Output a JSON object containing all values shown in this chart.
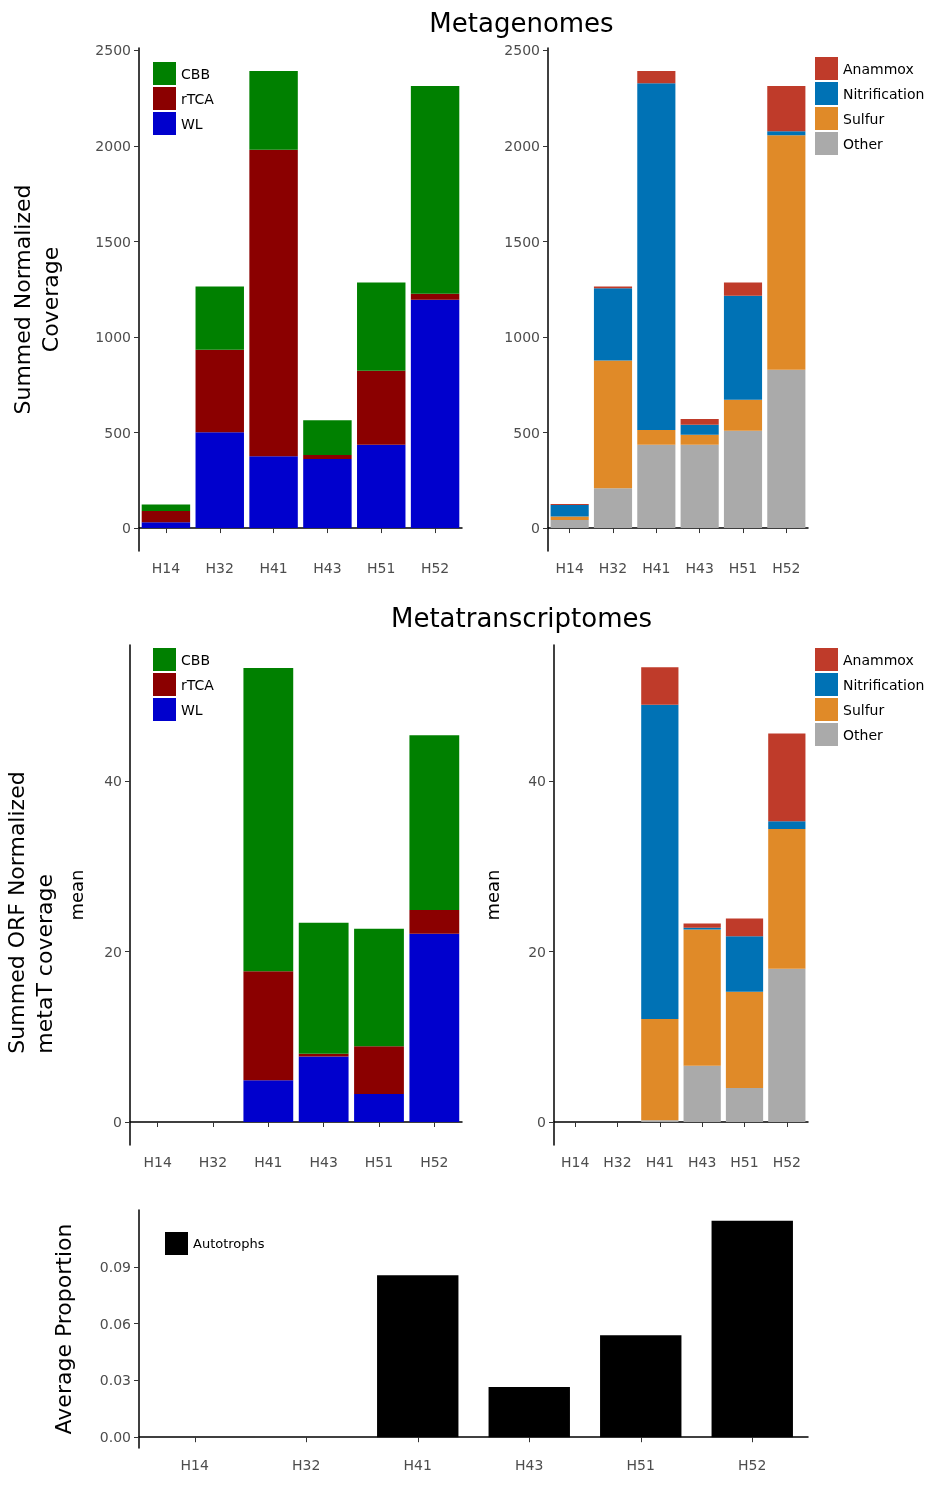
{
  "chart_data": [
    {
      "type": "bar",
      "title": "Metagenomes",
      "ylabel": "Summed Normalized\nCoverage",
      "categories": [
        "H14",
        "H32",
        "H41",
        "H43",
        "H51",
        "H52"
      ],
      "stacked": true,
      "legend": "top left",
      "ylim": [
        -120,
        2513
      ],
      "yticks": [
        0,
        500,
        1000,
        1500,
        2000,
        2500
      ],
      "series": [
        {
          "name": "WL",
          "color": "#0000cd",
          "values": [
            30,
            502,
            376,
            362,
            436,
            1195
          ]
        },
        {
          "name": "rTCA",
          "color": "#8b0000",
          "values": [
            59,
            431,
            1604,
            21,
            388,
            32
          ]
        },
        {
          "name": "CBB",
          "color": "#008000",
          "values": [
            35,
            331,
            413,
            182,
            461,
            1087
          ]
        }
      ]
    },
    {
      "type": "bar",
      "categories": [
        "H14",
        "H32",
        "H41",
        "H43",
        "H51",
        "H52"
      ],
      "stacked": true,
      "legend": "right",
      "ylim": [
        -120,
        2513
      ],
      "yticks": [
        0,
        500,
        1000,
        1500,
        2000,
        2500
      ],
      "series": [
        {
          "name": "Other",
          "color": "#aaaaaa",
          "values": [
            42,
            208,
            436,
            436,
            509,
            829
          ]
        },
        {
          "name": "Sulfur",
          "color": "#e08a28",
          "values": [
            19,
            669,
            77,
            52,
            163,
            1227
          ]
        },
        {
          "name": "Nitrification",
          "color": "#0072b5",
          "values": [
            60,
            379,
            1816,
            53,
            544,
            21
          ]
        },
        {
          "name": "Anammox",
          "color": "#bf3b2a",
          "values": [
            5,
            9,
            64,
            30,
            69,
            237
          ]
        }
      ]
    },
    {
      "type": "bar",
      "title": "Metatranscriptomes",
      "ylabel": "mean",
      "annotations": [
        "Summed ORF Normalized\nmetaT coverage"
      ],
      "categories": [
        "H14",
        "H32",
        "H41",
        "H43",
        "H51",
        "H52"
      ],
      "stacked": true,
      "legend": "top left",
      "ylim": [
        -2.7,
        56
      ],
      "yticks": [
        0,
        20,
        40
      ],
      "series": [
        {
          "name": "WL",
          "color": "#0000cd",
          "values": [
            null,
            null,
            4.9,
            7.7,
            3.3,
            22.1
          ]
        },
        {
          "name": "rTCA",
          "color": "#8b0000",
          "values": [
            null,
            null,
            12.8,
            0.3,
            5.6,
            2.8
          ]
        },
        {
          "name": "CBB",
          "color": "#008000",
          "values": [
            null,
            null,
            35.6,
            15.4,
            13.8,
            20.5
          ]
        }
      ]
    },
    {
      "type": "bar",
      "ylabel": "mean",
      "categories": [
        "H14",
        "H32",
        "H41",
        "H43",
        "H51",
        "H52"
      ],
      "stacked": true,
      "legend": "right",
      "ylim": [
        -2.7,
        56
      ],
      "yticks": [
        0,
        20,
        40
      ],
      "series": [
        {
          "name": "Other",
          "color": "#aaaaaa",
          "values": [
            null,
            null,
            0.2,
            6.6,
            4.0,
            18.0
          ]
        },
        {
          "name": "Sulfur",
          "color": "#e08a28",
          "values": [
            null,
            null,
            11.9,
            16.0,
            11.3,
            16.4
          ]
        },
        {
          "name": "Nitrification",
          "color": "#0072b5",
          "values": [
            null,
            null,
            36.9,
            0.2,
            6.5,
            0.9
          ]
        },
        {
          "name": "Anammox",
          "color": "#bf3b2a",
          "values": [
            null,
            null,
            4.4,
            0.5,
            2.1,
            10.3
          ]
        }
      ]
    },
    {
      "type": "bar",
      "ylabel": "Average Proportion",
      "categories": [
        "H14",
        "H32",
        "H41",
        "H43",
        "H51",
        "H52"
      ],
      "legend": "top left",
      "ylim": [
        -0.0057,
        0.12
      ],
      "yticks": [
        {
          "value": 0,
          "label": "0.00"
        },
        {
          "value": 0.03,
          "label": "0.03"
        },
        {
          "value": 0.06,
          "label": "0.06"
        },
        {
          "value": 0.09,
          "label": "0.09"
        }
      ],
      "series": [
        {
          "name": "Autotrophs",
          "color": "#000000",
          "values": [
            null,
            null,
            0.0855,
            0.0265,
            0.0538,
            0.1143
          ]
        }
      ]
    }
  ]
}
